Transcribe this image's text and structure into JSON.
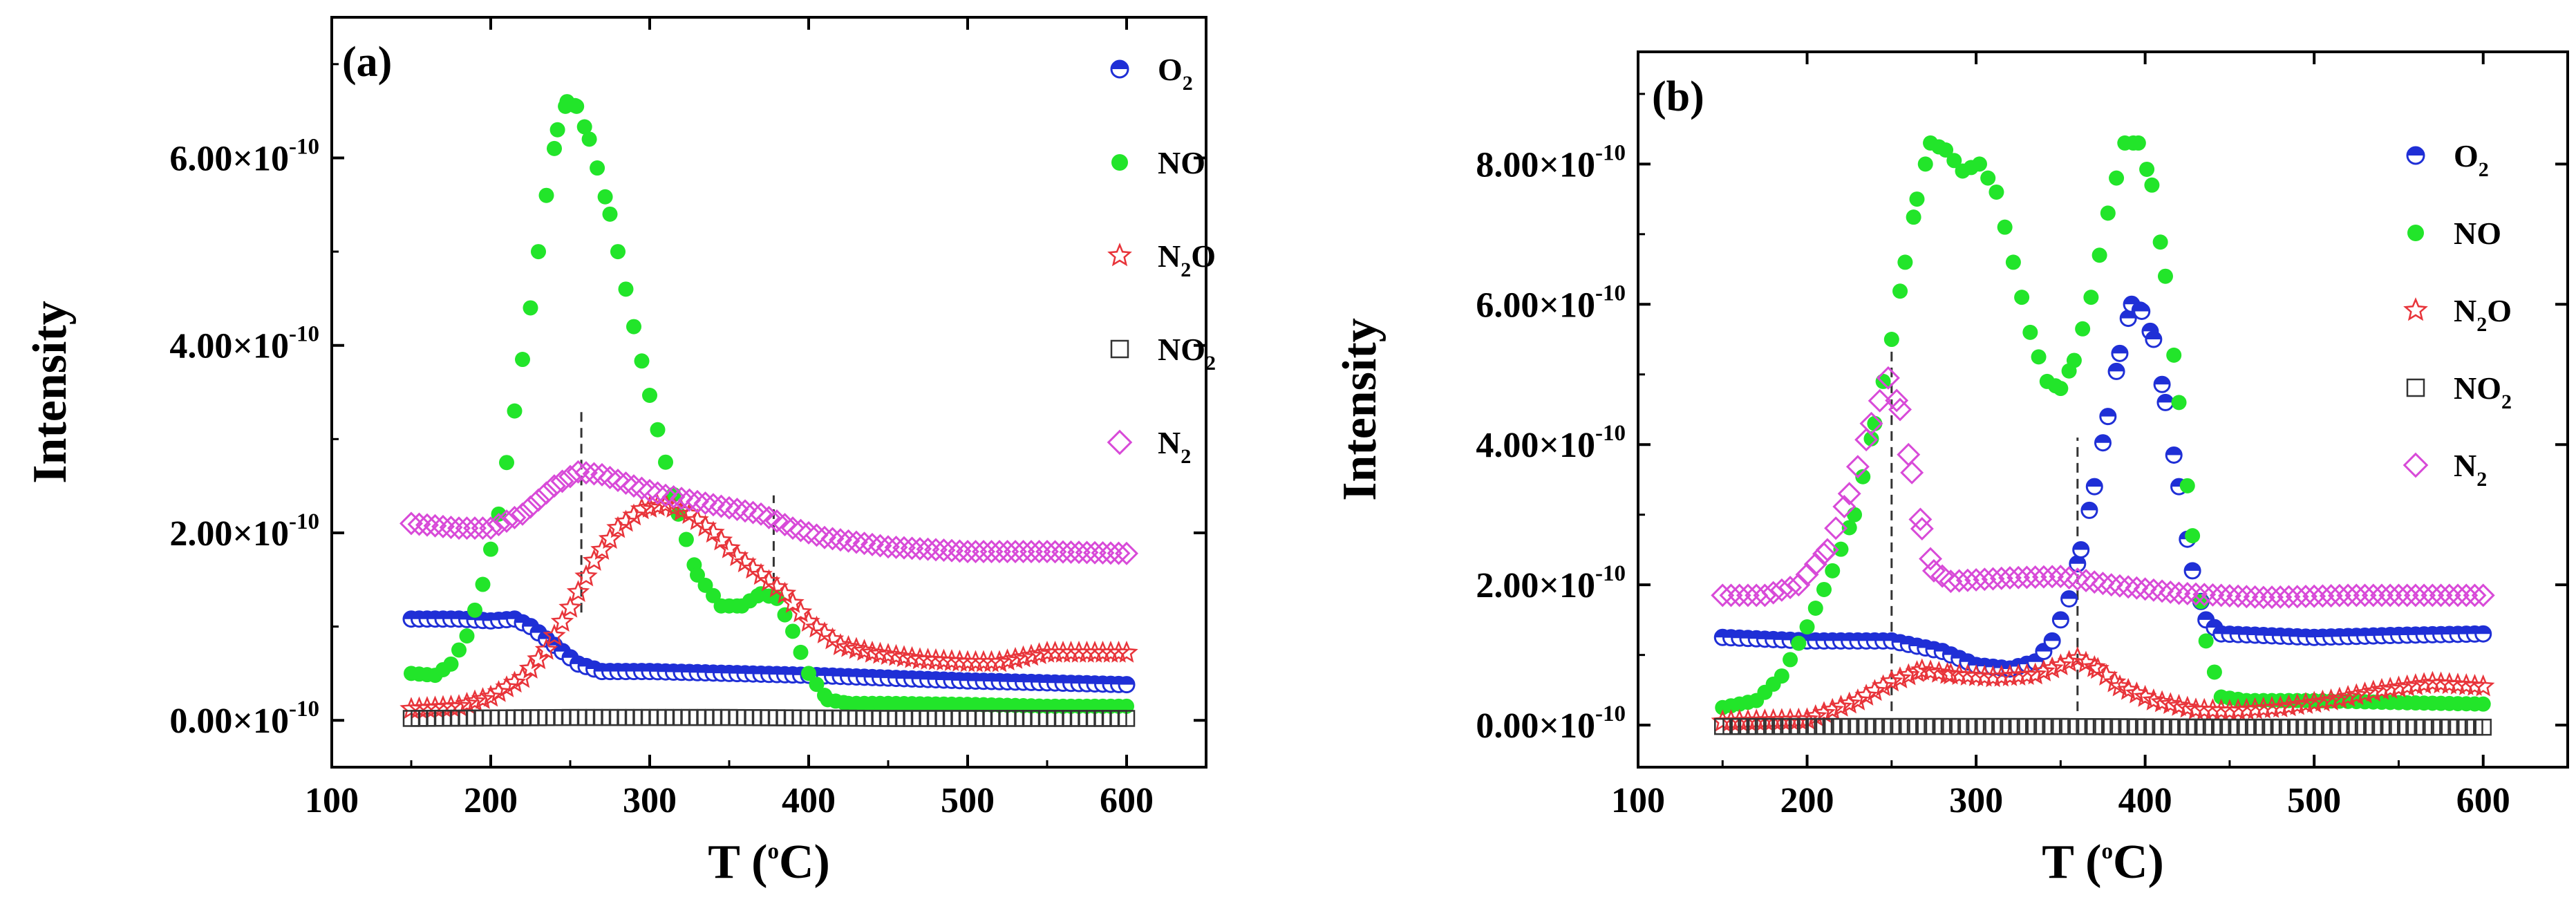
{
  "chart_data": [
    {
      "panel_label": "(a)",
      "type": "scatter",
      "xlabel": {
        "main": "T (",
        "sup": "o",
        "tail": "C)"
      },
      "ylabel": "Intensity",
      "xlim": [
        100,
        650
      ],
      "ylim": [
        -0.5,
        7.5
      ],
      "x_ticks": [
        100,
        200,
        300,
        400,
        500,
        600
      ],
      "y_ticks": [
        {
          "value": 0,
          "mantissa": "0.00",
          "times": "×",
          "base": "10",
          "exponent": "-10"
        },
        {
          "value": 2,
          "mantissa": "2.00",
          "times": "×",
          "base": "10",
          "exponent": "-10"
        },
        {
          "value": 4,
          "mantissa": "4.00",
          "times": "×",
          "base": "10",
          "exponent": "-10"
        },
        {
          "value": 6,
          "mantissa": "6.00",
          "times": "×",
          "base": "10",
          "exponent": "-10"
        }
      ],
      "vlines": [
        {
          "x": 257,
          "y_from": 1.15,
          "y_to": 3.3
        },
        {
          "x": 378,
          "y_from": 1.3,
          "y_to": 2.4
        }
      ],
      "series": [
        {
          "name": "O2",
          "label": "O",
          "sub": "2",
          "tail": "",
          "marker": "half-circle",
          "color": "#1f2fd6",
          "points": [
            [
              150,
              1.08
            ],
            [
              180,
              1.08
            ],
            [
              200,
              1.06
            ],
            [
              215,
              1.08
            ],
            [
              225,
              1.0
            ],
            [
              240,
              0.8
            ],
            [
              255,
              0.6
            ],
            [
              270,
              0.52
            ],
            [
              300,
              0.52
            ],
            [
              350,
              0.5
            ],
            [
              400,
              0.48
            ],
            [
              450,
              0.45
            ],
            [
              500,
              0.42
            ],
            [
              550,
              0.4
            ],
            [
              600,
              0.38
            ]
          ]
        },
        {
          "name": "NO",
          "label": "NO",
          "sub": "",
          "tail": "",
          "marker": "circle",
          "color": "#22e52a",
          "points": [
            [
              150,
              0.5
            ],
            [
              165,
              0.48
            ],
            [
              175,
              0.6
            ],
            [
              185,
              0.9
            ],
            [
              195,
              1.45
            ],
            [
              205,
              2.2
            ],
            [
              215,
              3.3
            ],
            [
              225,
              4.4
            ],
            [
              235,
              5.6
            ],
            [
              242,
              6.3
            ],
            [
              248,
              6.6
            ],
            [
              254,
              6.55
            ],
            [
              262,
              6.2
            ],
            [
              275,
              5.4
            ],
            [
              290,
              4.2
            ],
            [
              305,
              3.1
            ],
            [
              318,
              2.2
            ],
            [
              330,
              1.55
            ],
            [
              345,
              1.22
            ],
            [
              358,
              1.22
            ],
            [
              370,
              1.35
            ],
            [
              380,
              1.3
            ],
            [
              390,
              0.95
            ],
            [
              400,
              0.5
            ],
            [
              412,
              0.22
            ],
            [
              425,
              0.18
            ],
            [
              450,
              0.18
            ],
            [
              500,
              0.17
            ],
            [
              550,
              0.15
            ],
            [
              600,
              0.15
            ]
          ]
        },
        {
          "name": "N2O",
          "label": "N",
          "sub": "2",
          "tail": "O",
          "marker": "star",
          "color": "#e8343a",
          "points": [
            [
              150,
              0.12
            ],
            [
              180,
              0.15
            ],
            [
              200,
              0.25
            ],
            [
              220,
              0.45
            ],
            [
              235,
              0.75
            ],
            [
              250,
              1.2
            ],
            [
              265,
              1.7
            ],
            [
              280,
              2.05
            ],
            [
              295,
              2.25
            ],
            [
              310,
              2.3
            ],
            [
              325,
              2.2
            ],
            [
              340,
              2.0
            ],
            [
              355,
              1.75
            ],
            [
              370,
              1.55
            ],
            [
              385,
              1.35
            ],
            [
              400,
              1.05
            ],
            [
              420,
              0.8
            ],
            [
              440,
              0.72
            ],
            [
              470,
              0.65
            ],
            [
              500,
              0.62
            ],
            [
              520,
              0.62
            ],
            [
              550,
              0.72
            ],
            [
              600,
              0.72
            ]
          ]
        },
        {
          "name": "NO2",
          "label": "NO",
          "sub": "2",
          "tail": "",
          "marker": "square",
          "color": "#333333",
          "points": [
            [
              150,
              0.02
            ],
            [
              250,
              0.03
            ],
            [
              350,
              0.03
            ],
            [
              450,
              0.02
            ],
            [
              550,
              0.02
            ],
            [
              600,
              0.02
            ]
          ]
        },
        {
          "name": "N2",
          "label": "N",
          "sub": "2",
          "tail": "",
          "marker": "diamond",
          "color": "#d84ad8",
          "points": [
            [
              150,
              2.1
            ],
            [
              180,
              2.05
            ],
            [
              200,
              2.05
            ],
            [
              220,
              2.2
            ],
            [
              240,
              2.5
            ],
            [
              255,
              2.65
            ],
            [
              270,
              2.62
            ],
            [
              290,
              2.5
            ],
            [
              310,
              2.4
            ],
            [
              340,
              2.3
            ],
            [
              370,
              2.2
            ],
            [
              390,
              2.05
            ],
            [
              410,
              1.95
            ],
            [
              450,
              1.85
            ],
            [
              500,
              1.8
            ],
            [
              550,
              1.8
            ],
            [
              600,
              1.78
            ]
          ]
        }
      ]
    },
    {
      "panel_label": "(b)",
      "type": "scatter",
      "xlabel": {
        "main": "T (",
        "sup": "o",
        "tail": "C)"
      },
      "ylabel": "Intensity",
      "xlim": [
        100,
        650
      ],
      "ylim": [
        -0.6,
        9.6
      ],
      "x_ticks": [
        100,
        200,
        300,
        400,
        500,
        600
      ],
      "y_ticks": [
        {
          "value": 0,
          "mantissa": "0.00",
          "times": "×",
          "base": "10",
          "exponent": "-10"
        },
        {
          "value": 2,
          "mantissa": "2.00",
          "times": "×",
          "base": "10",
          "exponent": "-10"
        },
        {
          "value": 4,
          "mantissa": "4.00",
          "times": "×",
          "base": "10",
          "exponent": "-10"
        },
        {
          "value": 6,
          "mantissa": "6.00",
          "times": "×",
          "base": "10",
          "exponent": "-10"
        },
        {
          "value": 8,
          "mantissa": "8.00",
          "times": "×",
          "base": "10",
          "exponent": "-10"
        }
      ],
      "vlines": [
        {
          "x": 250,
          "y_from": 0.2,
          "y_to": 5.5
        },
        {
          "x": 360,
          "y_from": 0.2,
          "y_to": 4.1
        }
      ],
      "series": [
        {
          "name": "O2",
          "label": "O",
          "sub": "2",
          "tail": "",
          "marker": "half-circle",
          "color": "#1f2fd6",
          "points": [
            [
              150,
              1.25
            ],
            [
              200,
              1.2
            ],
            [
              250,
              1.2
            ],
            [
              280,
              1.05
            ],
            [
              300,
              0.85
            ],
            [
              320,
              0.8
            ],
            [
              335,
              0.9
            ],
            [
              345,
              1.2
            ],
            [
              355,
              1.8
            ],
            [
              362,
              2.5
            ],
            [
              370,
              3.4
            ],
            [
              378,
              4.4
            ],
            [
              385,
              5.3
            ],
            [
              392,
              6.0
            ],
            [
              398,
              5.9
            ],
            [
              405,
              5.5
            ],
            [
              412,
              4.6
            ],
            [
              420,
              3.4
            ],
            [
              428,
              2.2
            ],
            [
              436,
              1.5
            ],
            [
              445,
              1.3
            ],
            [
              500,
              1.25
            ],
            [
              550,
              1.28
            ],
            [
              600,
              1.3
            ]
          ]
        },
        {
          "name": "NO",
          "label": "NO",
          "sub": "",
          "tail": "",
          "marker": "circle",
          "color": "#22e52a",
          "points": [
            [
              150,
              0.25
            ],
            [
              170,
              0.35
            ],
            [
              185,
              0.7
            ],
            [
              200,
              1.4
            ],
            [
              215,
              2.2
            ],
            [
              228,
              3.0
            ],
            [
              240,
              4.3
            ],
            [
              250,
              5.5
            ],
            [
              258,
              6.6
            ],
            [
              265,
              7.5
            ],
            [
              273,
              8.3
            ],
            [
              282,
              8.2
            ],
            [
              292,
              7.9
            ],
            [
              302,
              8.0
            ],
            [
              312,
              7.6
            ],
            [
              322,
              6.6
            ],
            [
              332,
              5.6
            ],
            [
              342,
              4.9
            ],
            [
              350,
              4.8
            ],
            [
              358,
              5.2
            ],
            [
              368,
              6.1
            ],
            [
              378,
              7.3
            ],
            [
              388,
              8.3
            ],
            [
              396,
              8.3
            ],
            [
              404,
              7.7
            ],
            [
              412,
              6.4
            ],
            [
              420,
              4.6
            ],
            [
              428,
              2.7
            ],
            [
              436,
              1.2
            ],
            [
              445,
              0.4
            ],
            [
              460,
              0.35
            ],
            [
              500,
              0.35
            ],
            [
              550,
              0.32
            ],
            [
              600,
              0.3
            ]
          ]
        },
        {
          "name": "N2O",
          "label": "N",
          "sub": "2",
          "tail": "O",
          "marker": "star",
          "color": "#e8343a",
          "points": [
            [
              150,
              0.05
            ],
            [
              200,
              0.08
            ],
            [
              230,
              0.35
            ],
            [
              250,
              0.62
            ],
            [
              268,
              0.78
            ],
            [
              285,
              0.72
            ],
            [
              310,
              0.68
            ],
            [
              335,
              0.72
            ],
            [
              350,
              0.85
            ],
            [
              360,
              0.95
            ],
            [
              372,
              0.8
            ],
            [
              385,
              0.55
            ],
            [
              405,
              0.35
            ],
            [
              430,
              0.22
            ],
            [
              450,
              0.2
            ],
            [
              480,
              0.25
            ],
            [
              510,
              0.35
            ],
            [
              540,
              0.5
            ],
            [
              570,
              0.6
            ],
            [
              600,
              0.55
            ]
          ]
        },
        {
          "name": "NO2",
          "label": "NO",
          "sub": "2",
          "tail": "",
          "marker": "square",
          "color": "#333333",
          "points": [
            [
              150,
              -0.02
            ],
            [
              250,
              -0.02
            ],
            [
              350,
              -0.02
            ],
            [
              450,
              -0.03
            ],
            [
              550,
              -0.03
            ],
            [
              600,
              -0.03
            ]
          ]
        },
        {
          "name": "N2",
          "label": "N",
          "sub": "2",
          "tail": "",
          "marker": "diamond",
          "color": "#d84ad8",
          "points": [
            [
              150,
              1.85
            ],
            [
              175,
              1.85
            ],
            [
              195,
              2.0
            ],
            [
              212,
              2.5
            ],
            [
              225,
              3.3
            ],
            [
              238,
              4.3
            ],
            [
              248,
              4.95
            ],
            [
              255,
              4.5
            ],
            [
              262,
              3.6
            ],
            [
              268,
              2.8
            ],
            [
              275,
              2.2
            ],
            [
              285,
              2.05
            ],
            [
              320,
              2.1
            ],
            [
              350,
              2.12
            ],
            [
              380,
              2.0
            ],
            [
              420,
              1.88
            ],
            [
              470,
              1.82
            ],
            [
              520,
              1.85
            ],
            [
              560,
              1.85
            ],
            [
              600,
              1.85
            ]
          ]
        }
      ]
    }
  ]
}
